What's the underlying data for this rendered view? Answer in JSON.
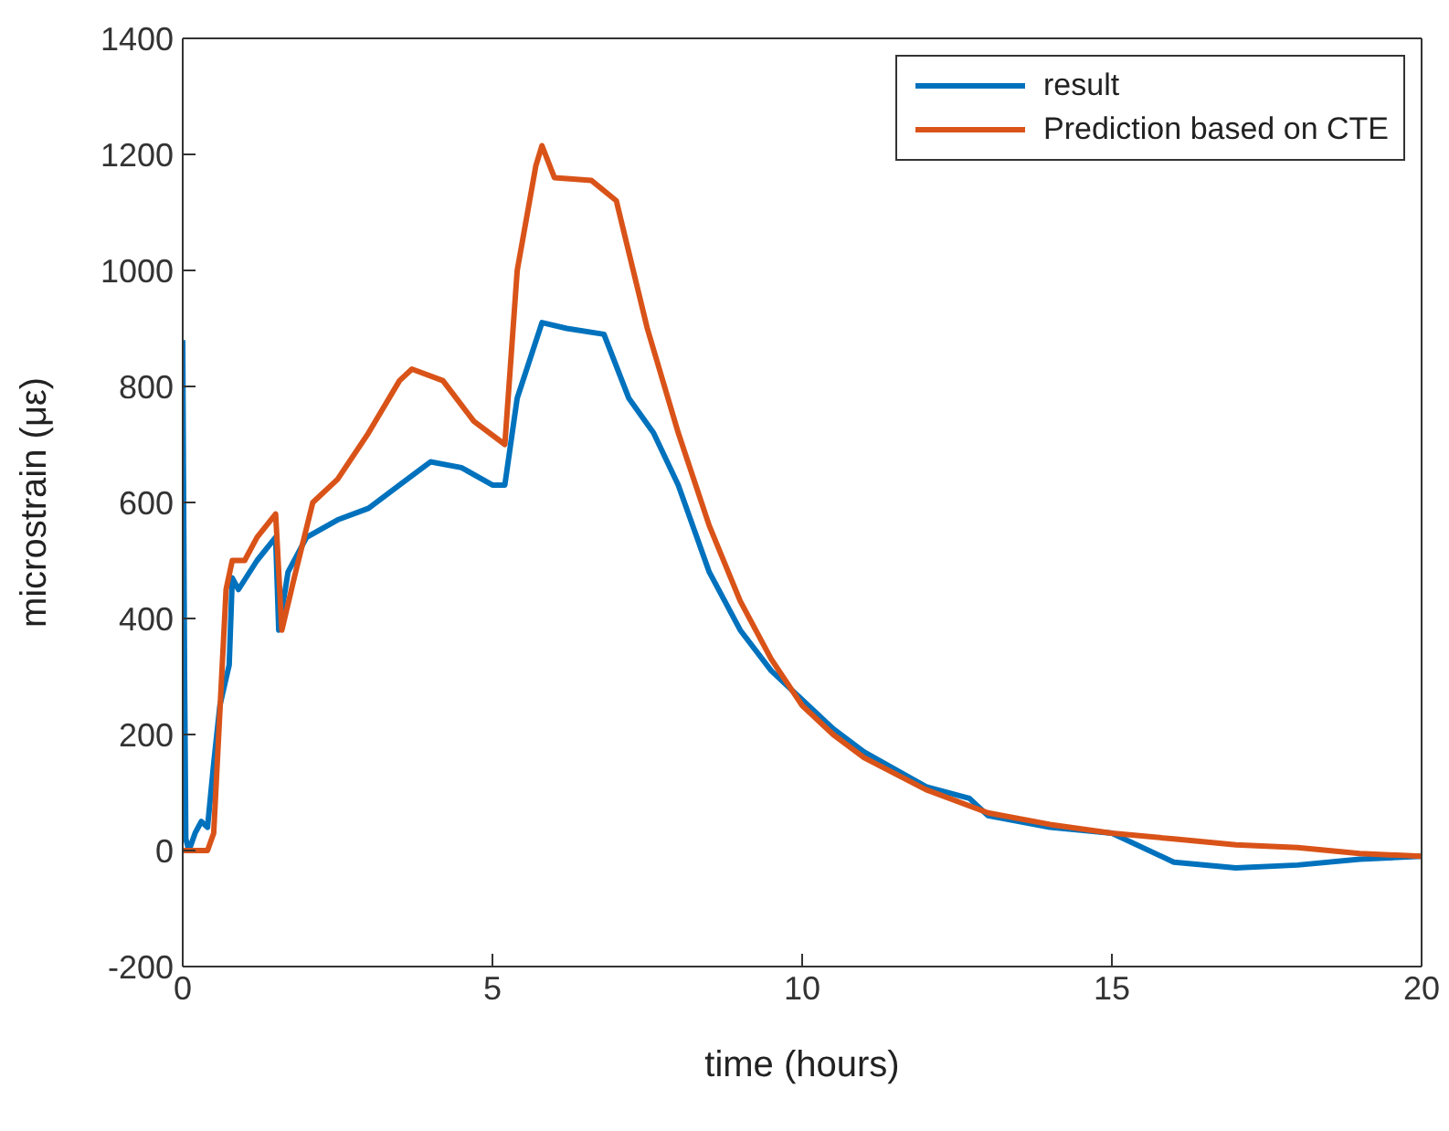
{
  "chart_data": {
    "type": "line",
    "xlabel": "time (hours)",
    "ylabel": "microstrain (με)",
    "xlim": [
      0,
      20
    ],
    "xticks": [
      0,
      5,
      10,
      15,
      20
    ],
    "ylim": [
      -200,
      1400
    ],
    "yticks": [
      -200,
      0,
      200,
      400,
      600,
      800,
      1000,
      1200,
      1400
    ],
    "grid": false,
    "legend": "top right",
    "line_style": "solid",
    "marker": "none",
    "series": [
      {
        "name": "result",
        "color": "#0072bd",
        "x": [
          0,
          0.03,
          0.05,
          0.1,
          0.2,
          0.3,
          0.4,
          0.5,
          0.6,
          0.75,
          0.8,
          0.9,
          1.2,
          1.5,
          1.55,
          1.7,
          2.0,
          2.5,
          3.0,
          3.5,
          4.0,
          4.5,
          5.0,
          5.2,
          5.4,
          5.8,
          6.2,
          6.8,
          7.2,
          7.6,
          8.0,
          8.5,
          9.0,
          9.5,
          10,
          10.5,
          11,
          12,
          12.7,
          13,
          14,
          15,
          16,
          17,
          18,
          19,
          20
        ],
        "values": [
          880,
          300,
          20,
          0,
          30,
          50,
          40,
          150,
          250,
          320,
          470,
          450,
          500,
          540,
          380,
          480,
          540,
          570,
          590,
          630,
          670,
          660,
          630,
          630,
          780,
          910,
          900,
          890,
          780,
          720,
          630,
          480,
          380,
          310,
          260,
          210,
          170,
          110,
          90,
          60,
          40,
          30,
          -20,
          -30,
          -25,
          -15,
          -10
        ]
      },
      {
        "name": "Prediction based on CTE",
        "color": "#d95319",
        "x": [
          0,
          0.4,
          0.5,
          0.7,
          0.8,
          1.0,
          1.2,
          1.5,
          1.6,
          1.8,
          2.1,
          2.5,
          3.0,
          3.5,
          3.7,
          4.2,
          4.7,
          5.2,
          5.4,
          5.7,
          5.8,
          6.0,
          6.6,
          7.0,
          7.5,
          8.0,
          8.5,
          9,
          9.5,
          10,
          10.5,
          11,
          12,
          13,
          14,
          15,
          16,
          17,
          18,
          19,
          20
        ],
        "values": [
          0,
          0,
          30,
          450,
          500,
          500,
          540,
          580,
          380,
          470,
          600,
          640,
          720,
          810,
          830,
          810,
          740,
          700,
          1000,
          1180,
          1215,
          1160,
          1155,
          1120,
          900,
          720,
          560,
          430,
          330,
          250,
          200,
          160,
          105,
          65,
          45,
          30,
          20,
          10,
          5,
          -5,
          -10
        ]
      }
    ]
  }
}
